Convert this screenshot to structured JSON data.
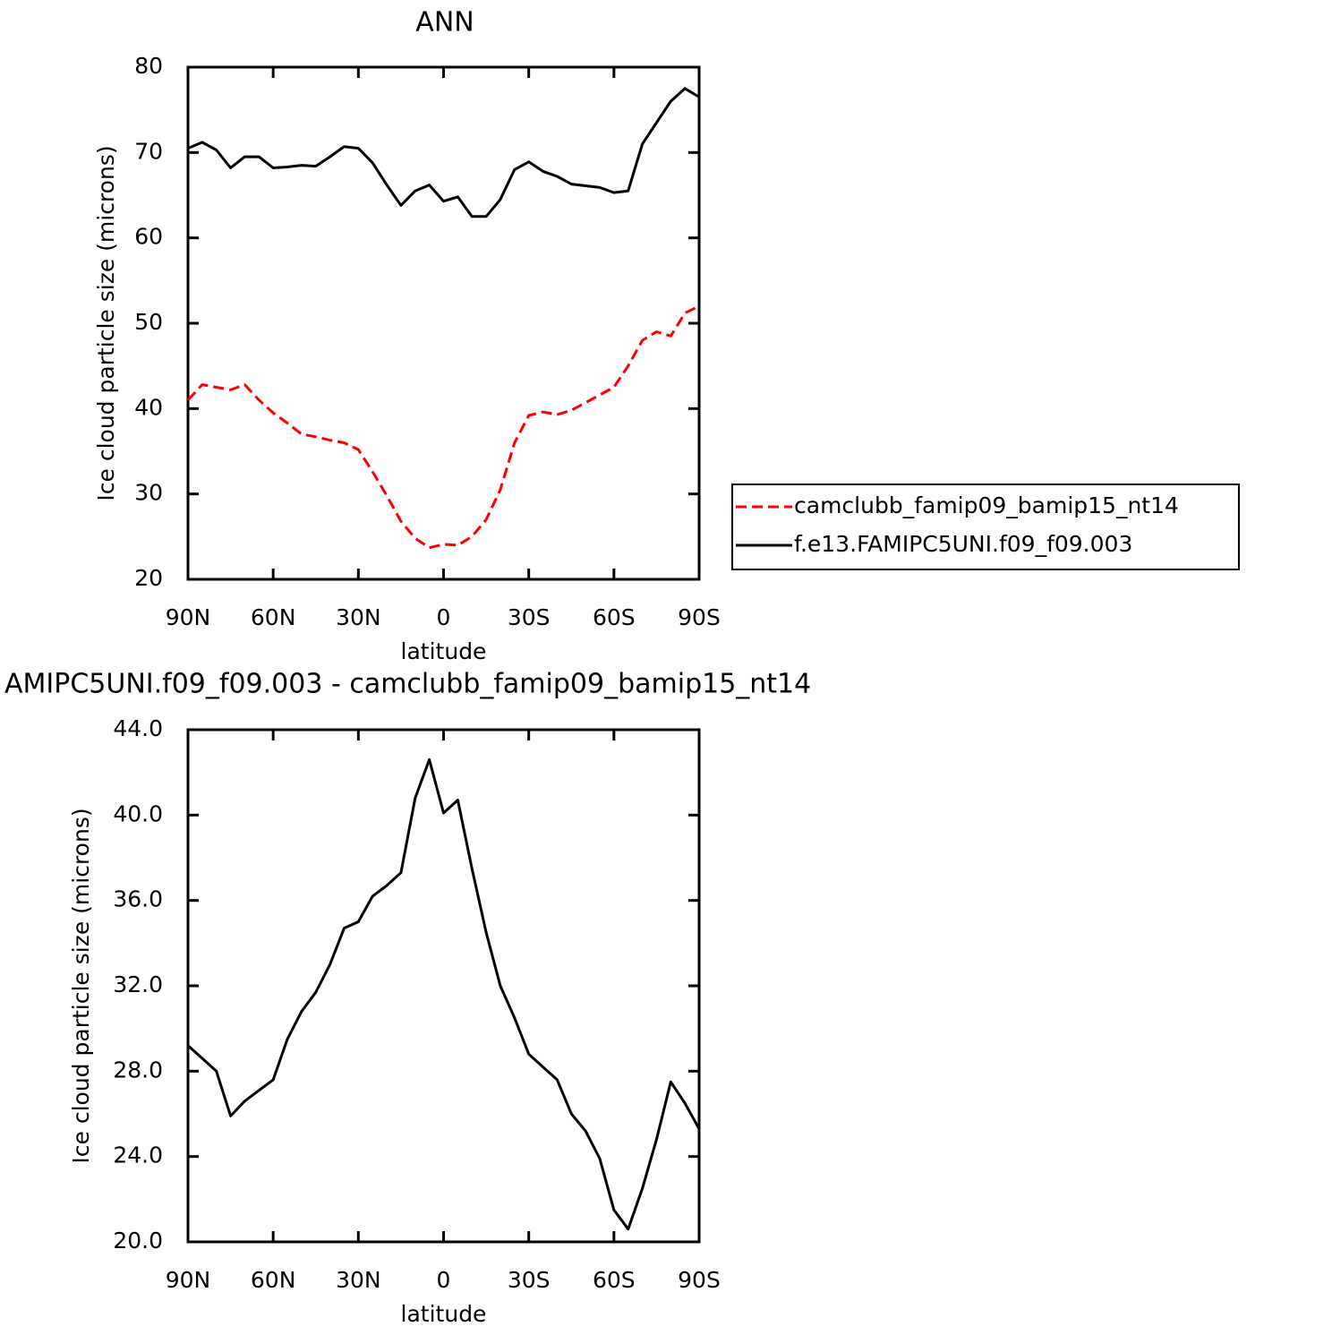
{
  "chart_data": [
    {
      "type": "line",
      "title": "ANN",
      "xlabel": "latitude",
      "ylabel": "Ice cloud particle size (microns)",
      "x": [
        90,
        85,
        80,
        75,
        70,
        65,
        60,
        55,
        50,
        45,
        40,
        35,
        30,
        25,
        20,
        15,
        10,
        5,
        0,
        -5,
        -10,
        -15,
        -20,
        -25,
        -30,
        -35,
        -40,
        -45,
        -50,
        -55,
        -60,
        -65,
        -70,
        -75,
        -80,
        -85,
        -90
      ],
      "xlim": [
        90,
        -90
      ],
      "xticks": [
        {
          "value": 90,
          "label": "90N"
        },
        {
          "value": 60,
          "label": "60N"
        },
        {
          "value": 30,
          "label": "30N"
        },
        0,
        {
          "value": -30,
          "label": "30S"
        },
        {
          "value": -60,
          "label": "60S"
        },
        {
          "value": -90,
          "label": "90S"
        }
      ],
      "ylim": [
        20,
        80
      ],
      "yticks": [
        20,
        30,
        40,
        50,
        60,
        70,
        80
      ],
      "legend": "right",
      "series": [
        {
          "name": "camclubb_famip09_bamip15_nt14",
          "color": "#ff0000",
          "dash": true,
          "values": [
            41.0,
            42.8,
            42.5,
            42.2,
            42.8,
            41.0,
            39.5,
            38.3,
            37.0,
            36.7,
            36.3,
            36.0,
            35.2,
            32.6,
            29.8,
            26.8,
            24.8,
            23.7,
            24.1,
            24.0,
            25.0,
            27.0,
            30.5,
            36.0,
            39.2,
            39.6,
            39.3,
            39.8,
            40.7,
            41.6,
            42.5,
            45.0,
            48.0,
            49.0,
            48.5,
            51.2,
            52.0
          ]
        },
        {
          "name": "f.e13.FAMIPC5UNI.f09_f09.003",
          "color": "#000000",
          "dash": false,
          "values": [
            70.5,
            71.2,
            70.3,
            68.2,
            69.5,
            69.5,
            68.2,
            68.3,
            68.5,
            68.4,
            69.5,
            70.7,
            70.5,
            68.8,
            66.2,
            63.8,
            65.5,
            66.2,
            64.3,
            64.8,
            62.5,
            62.5,
            64.5,
            68.0,
            68.9,
            67.8,
            67.2,
            66.3,
            66.1,
            65.9,
            65.3,
            65.5,
            71.0,
            73.5,
            76.0,
            77.5,
            76.5
          ]
        }
      ]
    },
    {
      "type": "line",
      "title": "AMIPC5UNI.f09_f09.003 - camclubb_famip09_bamip15_nt14",
      "xlabel": "latitude",
      "ylabel": "Ice cloud particle size (microns)",
      "x": [
        90,
        85,
        80,
        75,
        70,
        65,
        60,
        55,
        50,
        45,
        40,
        35,
        30,
        25,
        20,
        15,
        10,
        5,
        0,
        -5,
        -10,
        -15,
        -20,
        -25,
        -30,
        -35,
        -40,
        -45,
        -50,
        -55,
        -60,
        -65,
        -70,
        -75,
        -80,
        -85,
        -90
      ],
      "xlim": [
        90,
        -90
      ],
      "xticks": [
        {
          "value": 90,
          "label": "90N"
        },
        {
          "value": 60,
          "label": "60N"
        },
        {
          "value": 30,
          "label": "30N"
        },
        0,
        {
          "value": -30,
          "label": "30S"
        },
        {
          "value": -60,
          "label": "60S"
        },
        {
          "value": -90,
          "label": "90S"
        }
      ],
      "ylim": [
        20,
        44
      ],
      "yticks": [
        {
          "value": 20,
          "label": "20.0"
        },
        {
          "value": 24,
          "label": "24.0"
        },
        {
          "value": 28,
          "label": "28.0"
        },
        {
          "value": 32,
          "label": "32.0"
        },
        {
          "value": 36,
          "label": "36.0"
        },
        {
          "value": 40,
          "label": "40.0"
        },
        {
          "value": 44,
          "label": "44.0"
        }
      ],
      "series": [
        {
          "color": "#000000",
          "dash": false,
          "values": [
            29.2,
            28.6,
            28.0,
            25.9,
            26.6,
            27.1,
            27.6,
            29.5,
            30.8,
            31.7,
            33.0,
            34.7,
            35.0,
            36.2,
            36.7,
            37.3,
            40.8,
            42.6,
            40.1,
            40.7,
            37.5,
            34.5,
            32.0,
            30.5,
            28.8,
            28.2,
            27.6,
            26.0,
            25.2,
            23.9,
            21.5,
            20.6,
            22.5,
            24.8,
            27.5,
            26.5,
            25.3
          ]
        }
      ]
    }
  ]
}
